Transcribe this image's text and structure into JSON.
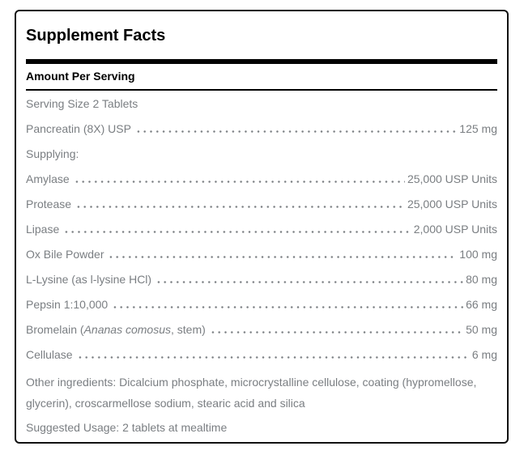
{
  "panel": {
    "title": "Supplement Facts",
    "column_header": "Amount Per Serving",
    "rows": [
      {
        "parts": [
          {
            "text": "Serving Size 2 Tablets",
            "italic": false
          }
        ],
        "value": ""
      },
      {
        "parts": [
          {
            "text": "Pancreatin (8X) USP",
            "italic": false
          }
        ],
        "value": "125 mg"
      },
      {
        "parts": [
          {
            "text": "Supplying:",
            "italic": false
          }
        ],
        "value": ""
      },
      {
        "parts": [
          {
            "text": "Amylase",
            "italic": false
          }
        ],
        "value": "25,000 USP Units"
      },
      {
        "parts": [
          {
            "text": "Protease",
            "italic": false
          }
        ],
        "value": "25,000 USP Units"
      },
      {
        "parts": [
          {
            "text": "Lipase",
            "italic": false
          }
        ],
        "value": "2,000 USP Units"
      },
      {
        "parts": [
          {
            "text": "Ox Bile Powder",
            "italic": false
          }
        ],
        "value": "100 mg"
      },
      {
        "parts": [
          {
            "text": "L-Lysine (as l-lysine HCl)",
            "italic": false
          }
        ],
        "value": "80 mg"
      },
      {
        "parts": [
          {
            "text": "Pepsin 1:10,000",
            "italic": false
          }
        ],
        "value": "66 mg"
      },
      {
        "parts": [
          {
            "text": "Bromelain (",
            "italic": false
          },
          {
            "text": "Ananas comosus",
            "italic": true
          },
          {
            "text": ", stem)",
            "italic": false
          }
        ],
        "value": "50 mg"
      },
      {
        "parts": [
          {
            "text": "Cellulase",
            "italic": false
          }
        ],
        "value": "6 mg"
      }
    ],
    "other_ingredients": "Other ingredients: Dicalcium phosphate, microcrystalline cellulose, coating (hypromellose, glycerin), croscarmellose sodium, stearic acid and silica",
    "suggested_usage": "Suggested Usage: 2 tablets at mealtime",
    "colors": {
      "text_gray": "#7a7e82",
      "rule_black": "#000000"
    }
  }
}
